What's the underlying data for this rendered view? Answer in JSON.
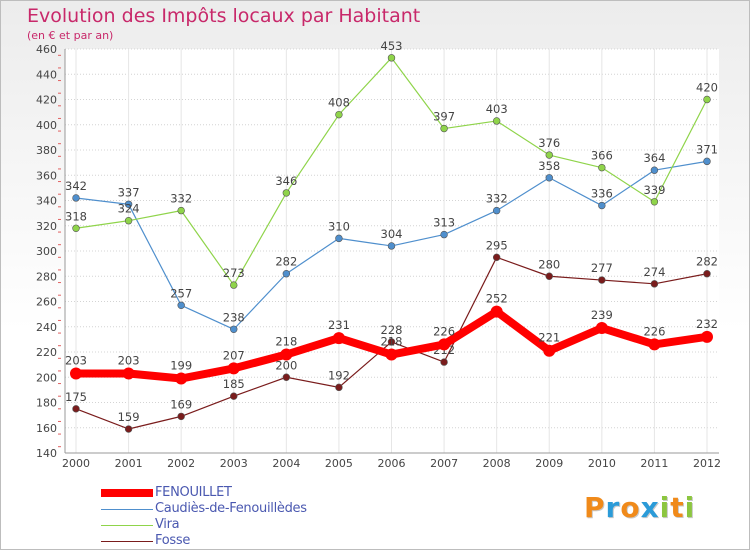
{
  "header": {
    "title": "Evolution des Impôts locaux par Habitant",
    "subtitle": "(en € et par an)"
  },
  "brand": {
    "letters": [
      "P",
      "r",
      "o",
      "x",
      "i",
      "t",
      "i"
    ],
    "colors": [
      "#f08a1a",
      "#2b9bd8",
      "#f08a1a",
      "#2b9bd8",
      "#8cc63f",
      "#f08a1a",
      "#8cc63f"
    ]
  },
  "chart_data": {
    "type": "line",
    "title": "Evolution des Impôts locaux par Habitant",
    "subtitle": "(en € et par an)",
    "xlabel": "",
    "ylabel": "",
    "ylim": [
      140,
      460
    ],
    "ytick_step": 20,
    "grid": "horizontal",
    "legend_position": "bottom-left",
    "categories": [
      "2000",
      "2001",
      "2002",
      "2003",
      "2004",
      "2005",
      "2006",
      "2007",
      "2008",
      "2009",
      "2010",
      "2011",
      "2012"
    ],
    "series": [
      {
        "name": "FENOUILLET",
        "color": "#ff0000",
        "style": "thick",
        "values": [
          203,
          203,
          199,
          207,
          218,
          231,
          218,
          226,
          252,
          221,
          239,
          226,
          232
        ]
      },
      {
        "name": "Caudiès-de-Fenouillèdes",
        "color": "#4f8fcd",
        "style": "thin",
        "values": [
          342,
          337,
          257,
          238,
          282,
          310,
          304,
          313,
          332,
          358,
          336,
          364,
          371
        ]
      },
      {
        "name": "Vira",
        "color": "#8fd44a",
        "style": "thin",
        "values": [
          318,
          324,
          332,
          273,
          346,
          408,
          453,
          397,
          403,
          376,
          366,
          339,
          420
        ]
      },
      {
        "name": "Fosse",
        "color": "#7a1c1c",
        "style": "thin",
        "values": [
          175,
          159,
          169,
          185,
          200,
          192,
          228,
          212,
          295,
          280,
          277,
          274,
          282
        ]
      }
    ]
  }
}
